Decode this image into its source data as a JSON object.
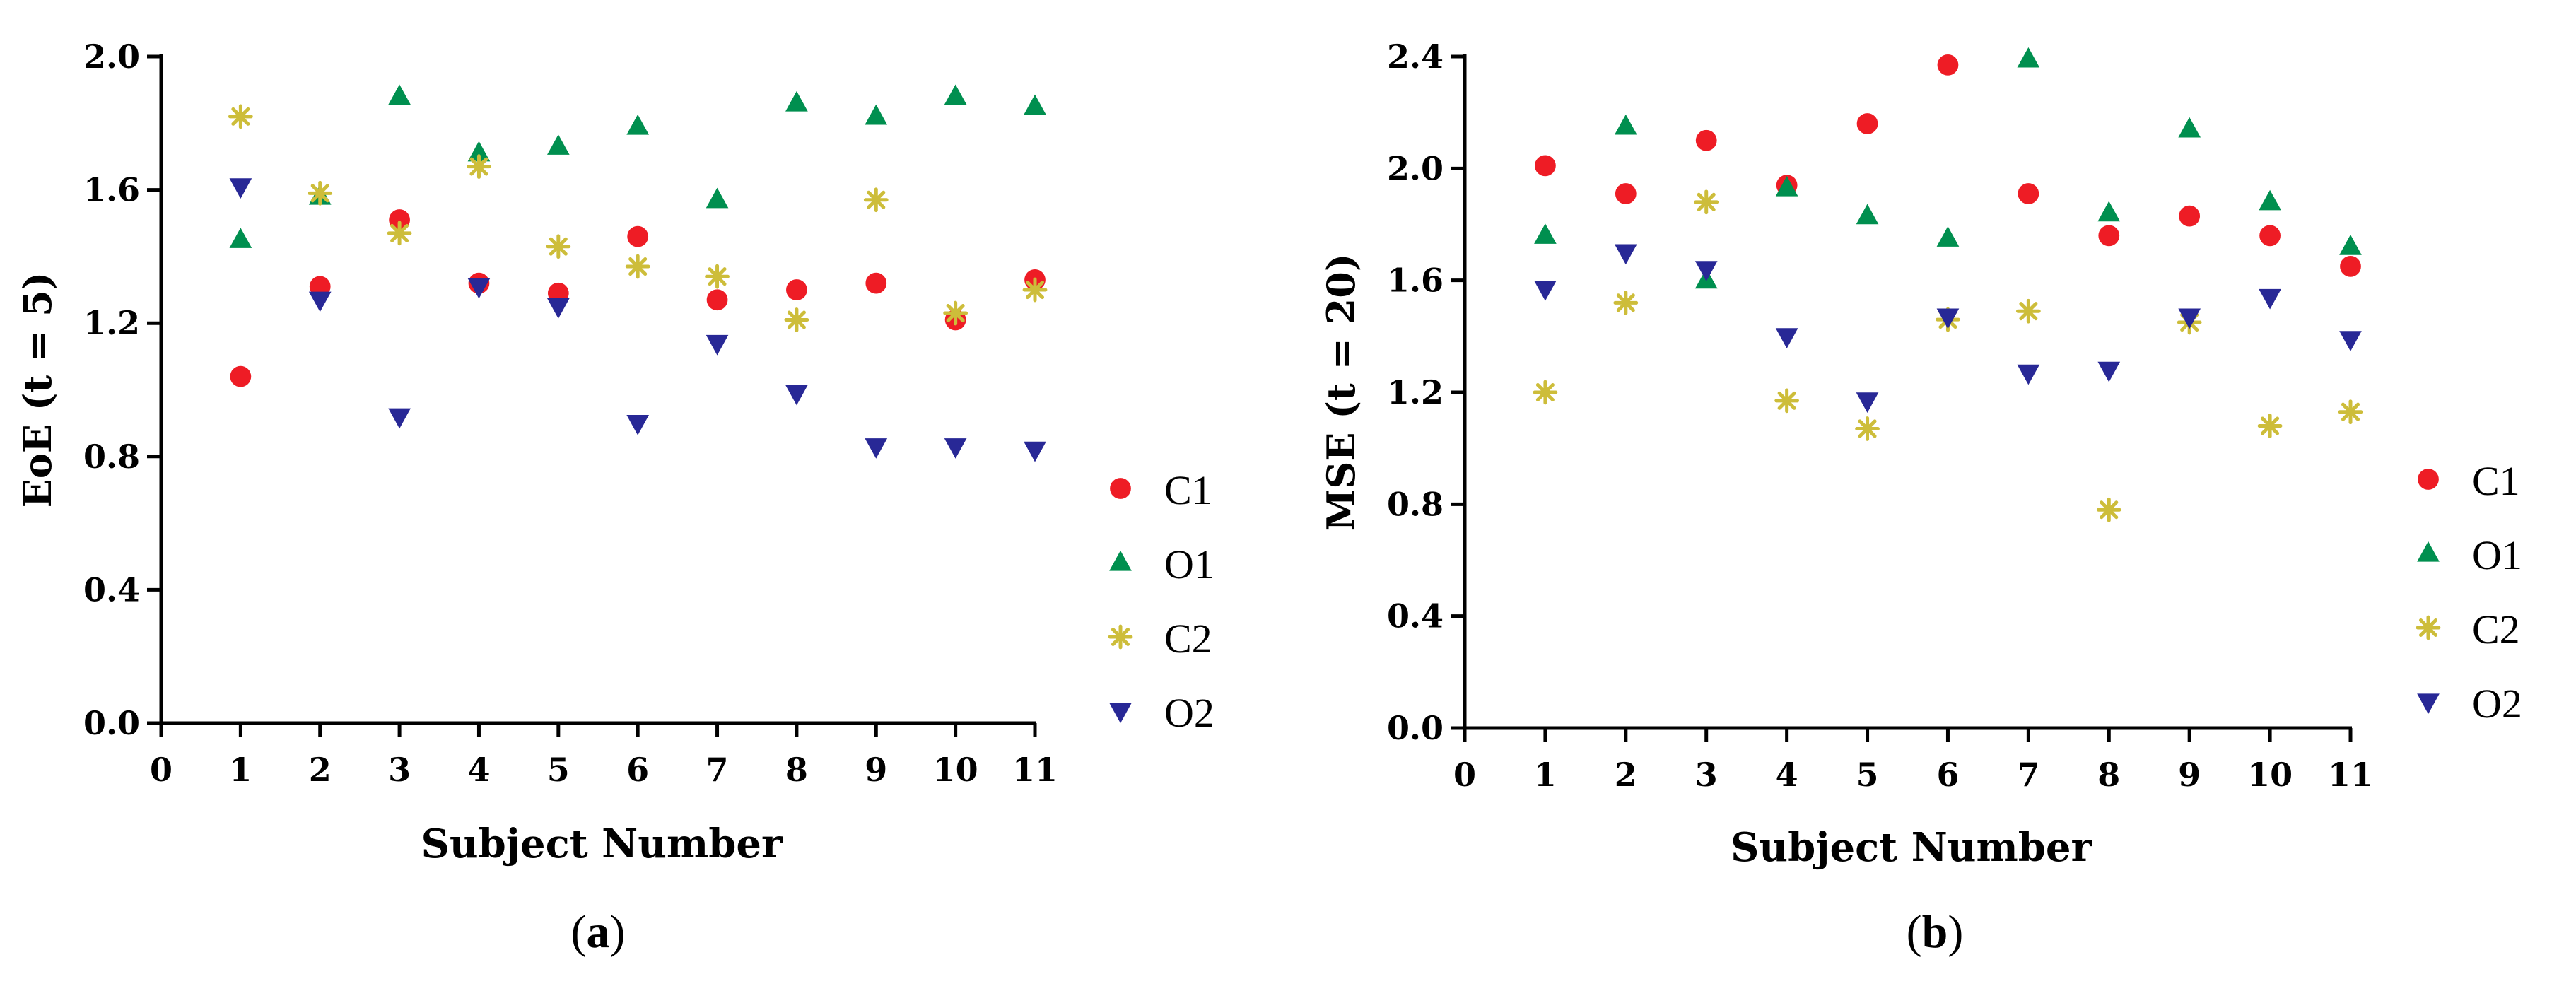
{
  "colors": {
    "C1": "#ee1c25",
    "O1": "#008f4f",
    "C2": "#cdbd3a",
    "O2": "#282896",
    "axis": "#000000"
  },
  "legend": [
    {
      "name": "C1",
      "marker": "circle"
    },
    {
      "name": "O1",
      "marker": "triangle-up"
    },
    {
      "name": "C2",
      "marker": "asterisk"
    },
    {
      "name": "O2",
      "marker": "triangle-down"
    }
  ],
  "chart_data": [
    {
      "type": "scatter",
      "panel_label": "(a)",
      "panel_letter": "a",
      "xlabel": "Subject Number",
      "ylabel_prefix": "EoE (",
      "ylabel_bold": "t = 5",
      "ylabel_suffix": ")",
      "xlim": [
        0,
        11
      ],
      "ylim": [
        0,
        2.0
      ],
      "xticks": [
        "0",
        "1",
        "2",
        "3",
        "4",
        "5",
        "6",
        "7",
        "8",
        "9",
        "10",
        "11"
      ],
      "yticks": [
        "0.0",
        "0.4",
        "0.8",
        "1.2",
        "1.6",
        "2.0"
      ],
      "x": [
        1,
        2,
        3,
        4,
        5,
        6,
        7,
        8,
        9,
        10,
        11
      ],
      "series": [
        {
          "name": "C1",
          "values": [
            1.04,
            1.31,
            1.51,
            1.32,
            1.29,
            1.46,
            1.27,
            1.3,
            1.32,
            1.21,
            1.33
          ]
        },
        {
          "name": "O1",
          "values": [
            1.45,
            1.58,
            1.88,
            1.71,
            1.73,
            1.79,
            1.57,
            1.86,
            1.82,
            1.88,
            1.85
          ]
        },
        {
          "name": "C2",
          "values": [
            1.82,
            1.59,
            1.47,
            1.67,
            1.43,
            1.37,
            1.34,
            1.21,
            1.57,
            1.23,
            1.3
          ]
        },
        {
          "name": "O2",
          "values": [
            1.61,
            1.27,
            0.92,
            1.31,
            1.25,
            0.9,
            1.14,
            0.99,
            0.83,
            0.83,
            0.82
          ]
        }
      ]
    },
    {
      "type": "scatter",
      "panel_label": "(b)",
      "panel_letter": "b",
      "xlabel": "Subject Number",
      "ylabel_prefix": "MSE (",
      "ylabel_bold": "t = 20",
      "ylabel_suffix": ")",
      "xlim": [
        0,
        11
      ],
      "ylim": [
        0,
        2.4
      ],
      "xticks": [
        "0",
        "1",
        "2",
        "3",
        "4",
        "5",
        "6",
        "7",
        "8",
        "9",
        "10",
        "11"
      ],
      "yticks": [
        "0.0",
        "0.4",
        "0.8",
        "1.2",
        "1.6",
        "2.0",
        "2.4"
      ],
      "x": [
        1,
        2,
        3,
        4,
        5,
        6,
        7,
        8,
        9,
        10,
        11
      ],
      "series": [
        {
          "name": "C1",
          "values": [
            2.01,
            1.91,
            2.1,
            1.94,
            2.16,
            2.37,
            1.91,
            1.76,
            1.83,
            1.76,
            1.65
          ]
        },
        {
          "name": "O1",
          "values": [
            1.76,
            2.15,
            1.6,
            1.93,
            1.83,
            1.75,
            2.39,
            1.84,
            2.14,
            1.88,
            1.72
          ]
        },
        {
          "name": "C2",
          "values": [
            1.2,
            1.52,
            1.88,
            1.17,
            1.07,
            1.46,
            1.49,
            0.78,
            1.45,
            1.08,
            1.13
          ]
        },
        {
          "name": "O2",
          "values": [
            1.57,
            1.7,
            1.64,
            1.4,
            1.17,
            1.47,
            1.27,
            1.28,
            1.47,
            1.54,
            1.39
          ]
        }
      ]
    }
  ]
}
